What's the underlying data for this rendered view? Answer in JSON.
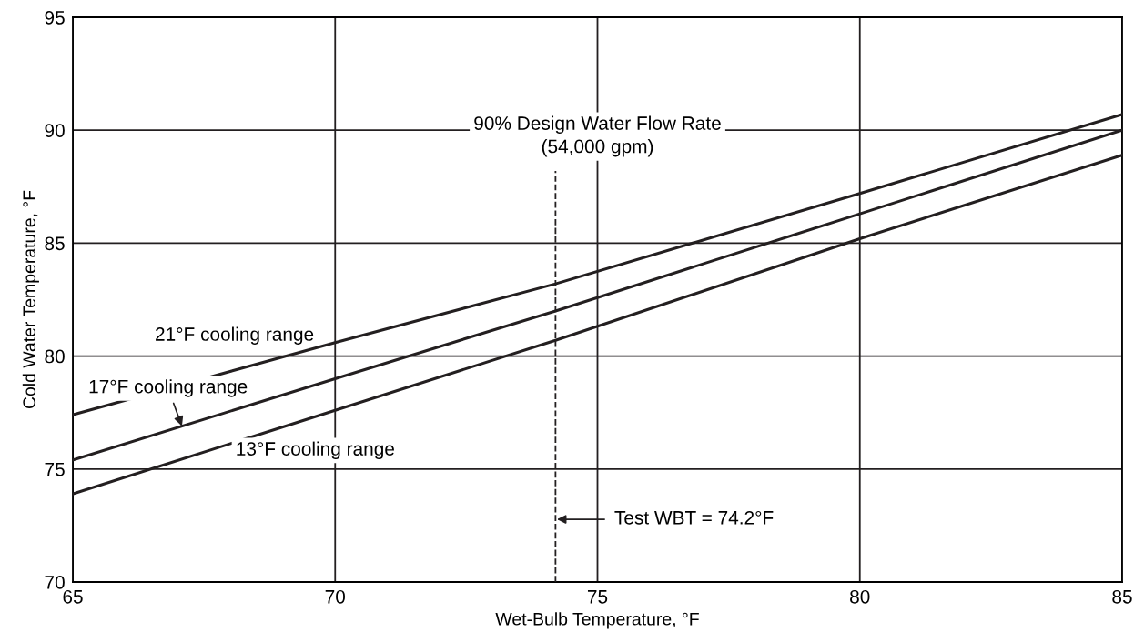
{
  "chart_data": {
    "type": "line",
    "xlabel": "Wet-Bulb Temperature, °F",
    "ylabel": "Cold Water Temperature, °F",
    "x": [
      65,
      70,
      74.2,
      80,
      85
    ],
    "series": [
      {
        "color": "#231f20",
        "values": [
          77.4,
          80.6,
          83.2,
          87.2,
          90.7
        ]
      },
      {
        "color": "#231f20",
        "values": [
          75.4,
          79.0,
          82.0,
          86.3,
          90.0
        ]
      },
      {
        "color": "#231f20",
        "values": [
          73.9,
          77.6,
          80.7,
          85.2,
          88.9
        ]
      }
    ],
    "xlim": [
      65,
      85
    ],
    "xticks": [
      65,
      70,
      75,
      80,
      85
    ],
    "ylim": [
      70,
      95
    ],
    "yticks": [
      70,
      75,
      80,
      85,
      90,
      95
    ],
    "grid": true,
    "line_style": "solid",
    "marker": "none",
    "ref_lines": [
      {
        "axis": "x",
        "value": 74.2,
        "line_style": "dashed",
        "color": "#231f20"
      }
    ],
    "annotations": [
      "21°F cooling range",
      {
        "text": "17°F cooling range",
        "x": 67.08,
        "y": 76.9
      },
      "13°F cooling range",
      "90% Design Water Flow Rate\n(54,000 gpm)",
      "Test WBT = 74.2°F"
    ]
  }
}
